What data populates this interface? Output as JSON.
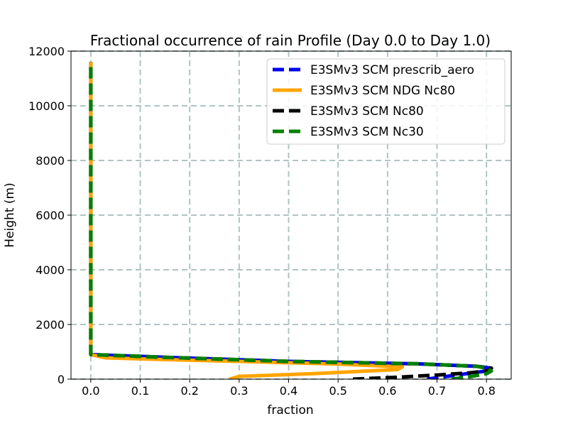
{
  "chart_data": {
    "type": "line",
    "title": "Fractional occurrence of rain Profile (Day 0.0 to Day 1.0)",
    "xlabel": "fraction",
    "ylabel": "Height (m)",
    "xlim": [
      -0.04,
      0.85
    ],
    "ylim": [
      0,
      12000
    ],
    "xticks": [
      0.0,
      0.1,
      0.2,
      0.3,
      0.4,
      0.5,
      0.6,
      0.7,
      0.8
    ],
    "xtick_labels": [
      "0.0",
      "0.1",
      "0.2",
      "0.3",
      "0.4",
      "0.5",
      "0.6",
      "0.7",
      "0.8"
    ],
    "yticks": [
      0,
      2000,
      4000,
      6000,
      8000,
      10000,
      12000
    ],
    "ytick_labels": [
      "0",
      "2000",
      "4000",
      "6000",
      "8000",
      "10000",
      "12000"
    ],
    "grid": true,
    "legend_position": "top-right",
    "series": [
      {
        "name": "E3SMv3 SCM prescrib_aero",
        "color": "#0000ee",
        "dash": "dashed",
        "points": [
          [
            0.68,
            0
          ],
          [
            0.72,
            100
          ],
          [
            0.76,
            200
          ],
          [
            0.8,
            300
          ],
          [
            0.81,
            400
          ],
          [
            0.78,
            470
          ],
          [
            0.66,
            560
          ],
          [
            0.4,
            650
          ],
          [
            0.15,
            800
          ],
          [
            0.0,
            900
          ],
          [
            0.0,
            11600
          ]
        ]
      },
      {
        "name": "E3SMv3 SCM NDG Nc80",
        "color": "#ffa500",
        "dash": "solid",
        "points": [
          [
            0.28,
            0
          ],
          [
            0.3,
            100
          ],
          [
            0.45,
            200
          ],
          [
            0.62,
            350
          ],
          [
            0.63,
            450
          ],
          [
            0.5,
            550
          ],
          [
            0.3,
            650
          ],
          [
            0.12,
            730
          ],
          [
            0.03,
            780
          ],
          [
            0.0,
            900
          ],
          [
            0.0,
            11600
          ]
        ]
      },
      {
        "name": "E3SMv3 SCM Nc80",
        "color": "#000000",
        "dash": "dashed",
        "points": [
          [
            0.53,
            0
          ],
          [
            0.62,
            70
          ],
          [
            0.7,
            150
          ],
          [
            0.76,
            220
          ],
          [
            0.8,
            300
          ],
          [
            0.81,
            400
          ],
          [
            0.78,
            470
          ],
          [
            0.66,
            560
          ],
          [
            0.4,
            650
          ],
          [
            0.15,
            800
          ],
          [
            0.0,
            900
          ],
          [
            0.0,
            11600
          ]
        ]
      },
      {
        "name": "E3SMv3 SCM Nc30",
        "color": "#008000",
        "dash": "dashed",
        "points": [
          [
            0.73,
            0
          ],
          [
            0.77,
            100
          ],
          [
            0.8,
            200
          ],
          [
            0.81,
            300
          ],
          [
            0.8,
            400
          ],
          [
            0.78,
            470
          ],
          [
            0.66,
            560
          ],
          [
            0.4,
            650
          ],
          [
            0.15,
            800
          ],
          [
            0.0,
            900
          ],
          [
            0.0,
            11600
          ]
        ]
      }
    ]
  }
}
